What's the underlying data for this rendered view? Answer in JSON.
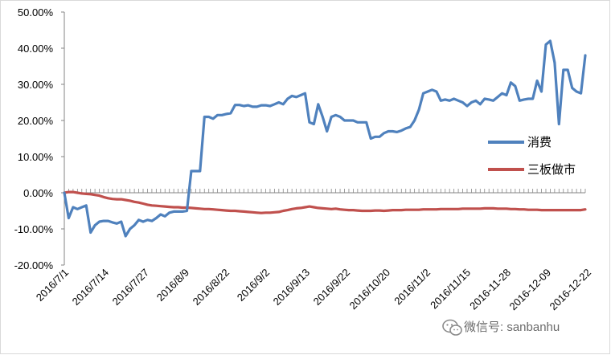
{
  "chart_data": {
    "type": "line",
    "y_tick_labels": [
      "50.00%",
      "40.00%",
      "30.00%",
      "20.00%",
      "10.00%",
      "0.00%",
      "-10.00%",
      "-20.00%"
    ],
    "ylim": [
      -0.2,
      0.5
    ],
    "x_tick_labels": [
      "2016/7/1",
      "2016/7/14",
      "2016/7/27",
      "2016/8/9",
      "2016/8/22",
      "2016/9/2",
      "2016/9/13",
      "2016/9/22",
      "2016/10/20",
      "2016/11/2",
      "2016/11/15",
      "2016-11-28",
      "2016-12-09",
      "2016-12-22"
    ],
    "legend_position": "right",
    "grid": false,
    "series": [
      {
        "name": "消费",
        "color": "#4f81bd",
        "values": [
          0,
          -0.07,
          -0.04,
          -0.045,
          -0.04,
          -0.035,
          -0.11,
          -0.09,
          -0.08,
          -0.078,
          -0.078,
          -0.082,
          -0.085,
          -0.08,
          -0.12,
          -0.1,
          -0.09,
          -0.075,
          -0.08,
          -0.075,
          -0.078,
          -0.07,
          -0.06,
          -0.065,
          -0.055,
          -0.052,
          -0.052,
          -0.052,
          -0.05,
          0.06,
          0.06,
          0.06,
          0.21,
          0.21,
          0.205,
          0.215,
          0.215,
          0.218,
          0.22,
          0.243,
          0.243,
          0.24,
          0.242,
          0.238,
          0.238,
          0.242,
          0.242,
          0.24,
          0.245,
          0.25,
          0.245,
          0.26,
          0.268,
          0.265,
          0.27,
          0.275,
          0.195,
          0.19,
          0.245,
          0.21,
          0.17,
          0.21,
          0.215,
          0.21,
          0.2,
          0.2,
          0.2,
          0.195,
          0.195,
          0.195,
          0.15,
          0.155,
          0.155,
          0.165,
          0.17,
          0.17,
          0.168,
          0.172,
          0.178,
          0.182,
          0.2,
          0.23,
          0.275,
          0.28,
          0.285,
          0.28,
          0.255,
          0.258,
          0.255,
          0.26,
          0.255,
          0.25,
          0.24,
          0.25,
          0.255,
          0.245,
          0.26,
          0.258,
          0.255,
          0.265,
          0.275,
          0.27,
          0.305,
          0.295,
          0.255,
          0.258,
          0.26,
          0.26,
          0.31,
          0.28,
          0.41,
          0.42,
          0.36,
          0.19,
          0.34,
          0.34,
          0.29,
          0.28,
          0.275,
          0.38
        ]
      },
      {
        "name": "三板做市",
        "color": "#c0504d",
        "values": [
          0,
          0.002,
          0.002,
          0.0,
          -0.002,
          -0.003,
          -0.004,
          -0.006,
          -0.008,
          -0.012,
          -0.015,
          -0.017,
          -0.018,
          -0.018,
          -0.02,
          -0.022,
          -0.025,
          -0.027,
          -0.03,
          -0.033,
          -0.035,
          -0.036,
          -0.037,
          -0.038,
          -0.039,
          -0.04,
          -0.04,
          -0.041,
          -0.041,
          -0.042,
          -0.043,
          -0.044,
          -0.045,
          -0.045,
          -0.046,
          -0.047,
          -0.048,
          -0.049,
          -0.05,
          -0.05,
          -0.051,
          -0.052,
          -0.053,
          -0.054,
          -0.055,
          -0.056,
          -0.055,
          -0.055,
          -0.054,
          -0.053,
          -0.05,
          -0.048,
          -0.045,
          -0.043,
          -0.042,
          -0.04,
          -0.038,
          -0.04,
          -0.042,
          -0.043,
          -0.044,
          -0.045,
          -0.044,
          -0.046,
          -0.047,
          -0.048,
          -0.048,
          -0.049,
          -0.05,
          -0.05,
          -0.05,
          -0.049,
          -0.049,
          -0.05,
          -0.049,
          -0.048,
          -0.048,
          -0.048,
          -0.047,
          -0.047,
          -0.047,
          -0.047,
          -0.046,
          -0.046,
          -0.046,
          -0.046,
          -0.045,
          -0.045,
          -0.045,
          -0.045,
          -0.045,
          -0.044,
          -0.044,
          -0.044,
          -0.044,
          -0.044,
          -0.043,
          -0.043,
          -0.043,
          -0.044,
          -0.044,
          -0.044,
          -0.045,
          -0.045,
          -0.046,
          -0.046,
          -0.047,
          -0.047,
          -0.047,
          -0.048,
          -0.048,
          -0.048,
          -0.048,
          -0.048,
          -0.048,
          -0.048,
          -0.048,
          -0.048,
          -0.048,
          -0.046
        ]
      }
    ]
  },
  "watermark": {
    "text": "微信号: sanbanhu",
    "icon": "wechat-icon"
  }
}
